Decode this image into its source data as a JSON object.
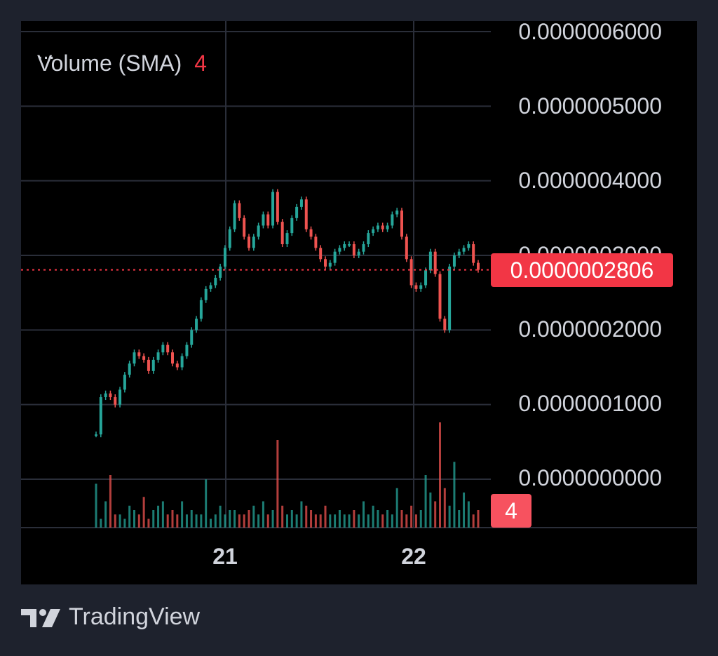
{
  "legend": {
    "dots": "...",
    "indicator_name": "Volume (SMA)",
    "indicator_value": "4"
  },
  "price_axis": {
    "labels": [
      "0.0000006000",
      "0.0000005000",
      "0.0000004000",
      "0.0000003000",
      "0.0000002000",
      "0.0000001000",
      "0.0000000000"
    ],
    "last_price": "0.0000002806",
    "volume_value": "4"
  },
  "time_axis": {
    "labels": [
      "21",
      "22"
    ]
  },
  "brand": {
    "name": "TradingView"
  },
  "colors": {
    "background": "#000000",
    "frame": "#1e222d",
    "up": "#26a69a",
    "down": "#ef5350",
    "last_price": "#f23645",
    "grid": "#2a2e39",
    "text": "#d1d4dc"
  },
  "chart_data": {
    "type": "line",
    "series": [
      {
        "values": [
          6e-08,
          1.1e-07,
          1.15e-07,
          1.1e-07,
          1e-07,
          1.2e-07,
          1.4e-07,
          1.55e-07,
          1.7e-07,
          1.65e-07,
          1.6e-07,
          1.45e-07,
          1.6e-07,
          1.7e-07,
          1.8e-07,
          1.7e-07,
          1.55e-07,
          1.5e-07,
          1.65e-07,
          1.8e-07,
          2e-07,
          2.15e-07,
          2.4e-07,
          2.55e-07,
          2.6e-07,
          2.7e-07,
          2.85e-07,
          3.1e-07,
          3.35e-07,
          3.7e-07,
          3.5e-07,
          3.25e-07,
          3.1e-07,
          3.25e-07,
          3.4e-07,
          3.55e-07,
          3.4e-07,
          3.85e-07,
          3.45e-07,
          3.15e-07,
          3.3e-07,
          3.5e-07,
          3.65e-07,
          3.75e-07,
          3.35e-07,
          3.25e-07,
          3.1e-07,
          2.95e-07,
          2.85e-07,
          2.9e-07,
          3.05e-07,
          3.1e-07,
          3.15e-07,
          3.15e-07,
          3e-07,
          3.05e-07,
          3.15e-07,
          3.3e-07,
          3.35e-07,
          3.4e-07,
          3.35e-07,
          3.4e-07,
          3.55e-07,
          3.6e-07,
          3.25e-07,
          2.95e-07,
          2.6e-07,
          2.55e-07,
          2.6e-07,
          2.8e-07,
          3.05e-07,
          2.75e-07,
          2.15e-07,
          2e-07,
          2.85e-07,
          3e-07,
          3.05e-07,
          3.1e-07,
          3.15e-07,
          2.9e-07,
          2.806e-07
        ]
      }
    ],
    "x_ticks": [
      "21",
      "22"
    ],
    "y_ticks": [
      "0.0000006000",
      "0.0000005000",
      "0.0000004000",
      "0.0000003000",
      "0.0000002000",
      "0.0000001000",
      "0.0000000000"
    ],
    "ylim": [
      0.0,
      6e-07
    ],
    "last_price": 2.806e-07,
    "volume": {
      "values": [
        10,
        2,
        6,
        12,
        3,
        3,
        2,
        5,
        4,
        3,
        7,
        2,
        4,
        5,
        6,
        3,
        4,
        3,
        6,
        3,
        4,
        3,
        3,
        11,
        2,
        3,
        5,
        3,
        4,
        4,
        3,
        3,
        4,
        5,
        3,
        6,
        3,
        4,
        20,
        5,
        3,
        4,
        3,
        6,
        5,
        4,
        3,
        3,
        5,
        3,
        3,
        4,
        3,
        3,
        4,
        3,
        6,
        3,
        5,
        4,
        3,
        4,
        3,
        9,
        4,
        3,
        5,
        3,
        4,
        12,
        8,
        6,
        24,
        9,
        5,
        15,
        4,
        8,
        6,
        3,
        4
      ],
      "sma": 4
    },
    "grid": true
  }
}
